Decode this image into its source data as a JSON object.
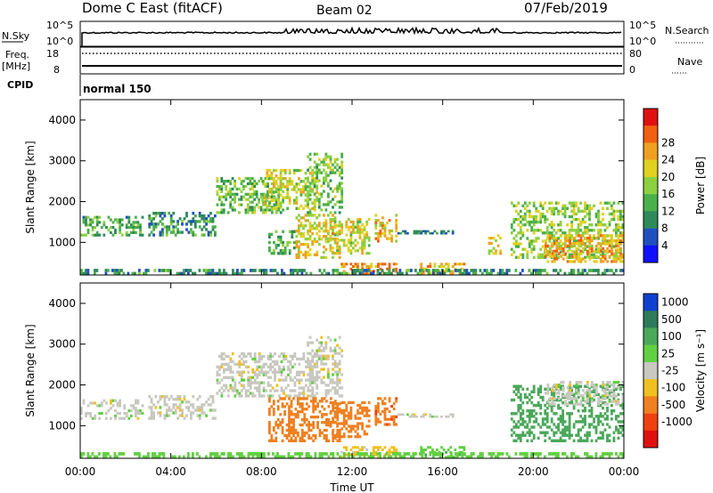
{
  "header": {
    "title": "Dome C East (fitACF)",
    "beam": "Beam 02",
    "date": "07/Feb/2019"
  },
  "left_labels": {
    "nsky": "N.Sky",
    "freq": "Freq.",
    "mhz": "[MHz]",
    "cpid": "CPID"
  },
  "right_labels": {
    "nsearch": "N.Search",
    "nave": "Nave"
  },
  "ticks": {
    "nsky_top": "10^5",
    "nsky_bottom": "10^0",
    "freq_top": "18",
    "freq_bottom": "8",
    "nave_top": "80",
    "nave_bottom": "0"
  },
  "cpid_text": "normal 150",
  "chart_data": [
    {
      "type": "heatmap",
      "panel": "power",
      "xlabel": "",
      "ylabel": "Slant Range [km]",
      "xlim": [
        0,
        24
      ],
      "ylim": [
        200,
        4500
      ],
      "x_ticks": [
        "00:00",
        "04:00",
        "08:00",
        "12:00",
        "16:00",
        "20:00",
        "00:00"
      ],
      "y_ticks": [
        1000,
        2000,
        3000,
        4000
      ],
      "colorbar_label": "Power [dB]",
      "colorbar_ticks": [
        4,
        8,
        12,
        16,
        20,
        24,
        28
      ],
      "colorbar_colors": [
        "#1010ff",
        "#2050c0",
        "#2e8a5a",
        "#4ab04a",
        "#8cd040",
        "#e0d020",
        "#f0a020",
        "#f06010",
        "#e01010"
      ],
      "regions": [
        {
          "t": [
            0.0,
            2.8
          ],
          "r": [
            1150,
            1650
          ],
          "v": 12
        },
        {
          "t": [
            3.0,
            6.0
          ],
          "r": [
            1150,
            1750
          ],
          "v": 10
        },
        {
          "t": [
            6.0,
            9.0
          ],
          "r": [
            1700,
            2600
          ],
          "v": 14
        },
        {
          "t": [
            8.0,
            10.5
          ],
          "r": [
            1800,
            2800
          ],
          "v": 18
        },
        {
          "t": [
            10.0,
            11.6
          ],
          "r": [
            1700,
            3200
          ],
          "v": 14
        },
        {
          "t": [
            8.3,
            9.5
          ],
          "r": [
            700,
            1300
          ],
          "v": 12
        },
        {
          "t": [
            9.5,
            11.5
          ],
          "r": [
            600,
            1700
          ],
          "v": 20
        },
        {
          "t": [
            11.0,
            12.8
          ],
          "r": [
            700,
            1600
          ],
          "v": 18
        },
        {
          "t": [
            13.0,
            14.0
          ],
          "r": [
            1000,
            1700
          ],
          "v": 22
        },
        {
          "t": [
            11.5,
            14.0
          ],
          "r": [
            200,
            500
          ],
          "v": 24
        },
        {
          "t": [
            15.0,
            17.0
          ],
          "r": [
            200,
            500
          ],
          "v": 22
        },
        {
          "t": [
            14.0,
            16.5
          ],
          "r": [
            1200,
            1300
          ],
          "v": 8
        },
        {
          "t": [
            18.0,
            18.6
          ],
          "r": [
            700,
            1200
          ],
          "v": 20
        },
        {
          "t": [
            19.0,
            24.0
          ],
          "r": [
            600,
            2000
          ],
          "v": 16
        },
        {
          "t": [
            20.5,
            24.0
          ],
          "r": [
            500,
            1200
          ],
          "v": 22
        },
        {
          "t": [
            0.0,
            24.0
          ],
          "r": [
            200,
            350
          ],
          "v": 10
        }
      ]
    },
    {
      "type": "heatmap",
      "panel": "velocity",
      "xlabel": "Time UT",
      "ylabel": "Slant Range [km]",
      "xlim": [
        0,
        24
      ],
      "ylim": [
        200,
        4500
      ],
      "x_ticks": [
        "00:00",
        "04:00",
        "08:00",
        "12:00",
        "16:00",
        "20:00",
        "00:00"
      ],
      "y_ticks": [
        1000,
        2000,
        3000,
        4000
      ],
      "colorbar_label": "Velocity [m s⁻¹]",
      "colorbar_ticks": [
        1000,
        500,
        100,
        25,
        -25,
        -100,
        -500,
        -1000
      ],
      "colorbar_colors": [
        "#1040d0",
        "#2e7a5a",
        "#4aa85a",
        "#60d040",
        "#c8c8c0",
        "#f0c020",
        "#f08020",
        "#f04010",
        "#e01010"
      ],
      "regions": [
        {
          "t": [
            0.0,
            2.8
          ],
          "r": [
            1150,
            1650
          ],
          "v": 0
        },
        {
          "t": [
            3.0,
            6.0
          ],
          "r": [
            1150,
            1750
          ],
          "v": 0
        },
        {
          "t": [
            6.0,
            10.5
          ],
          "r": [
            1700,
            2800
          ],
          "v": 0
        },
        {
          "t": [
            10.0,
            11.6
          ],
          "r": [
            1700,
            3200
          ],
          "v": 0
        },
        {
          "t": [
            8.3,
            11.5
          ],
          "r": [
            600,
            1700
          ],
          "v": -300
        },
        {
          "t": [
            11.0,
            12.8
          ],
          "r": [
            700,
            1600
          ],
          "v": -200
        },
        {
          "t": [
            13.0,
            14.0
          ],
          "r": [
            1000,
            1700
          ],
          "v": -400
        },
        {
          "t": [
            11.5,
            14.0
          ],
          "r": [
            200,
            500
          ],
          "v": -50
        },
        {
          "t": [
            15.0,
            17.0
          ],
          "r": [
            200,
            500
          ],
          "v": 80
        },
        {
          "t": [
            14.0,
            16.5
          ],
          "r": [
            1200,
            1300
          ],
          "v": 0
        },
        {
          "t": [
            19.0,
            24.0
          ],
          "r": [
            600,
            2000
          ],
          "v": 300
        },
        {
          "t": [
            20.5,
            24.0
          ],
          "r": [
            1500,
            2100
          ],
          "v": 0
        },
        {
          "t": [
            0.0,
            24.0
          ],
          "r": [
            200,
            350
          ],
          "v": 60
        }
      ]
    }
  ]
}
